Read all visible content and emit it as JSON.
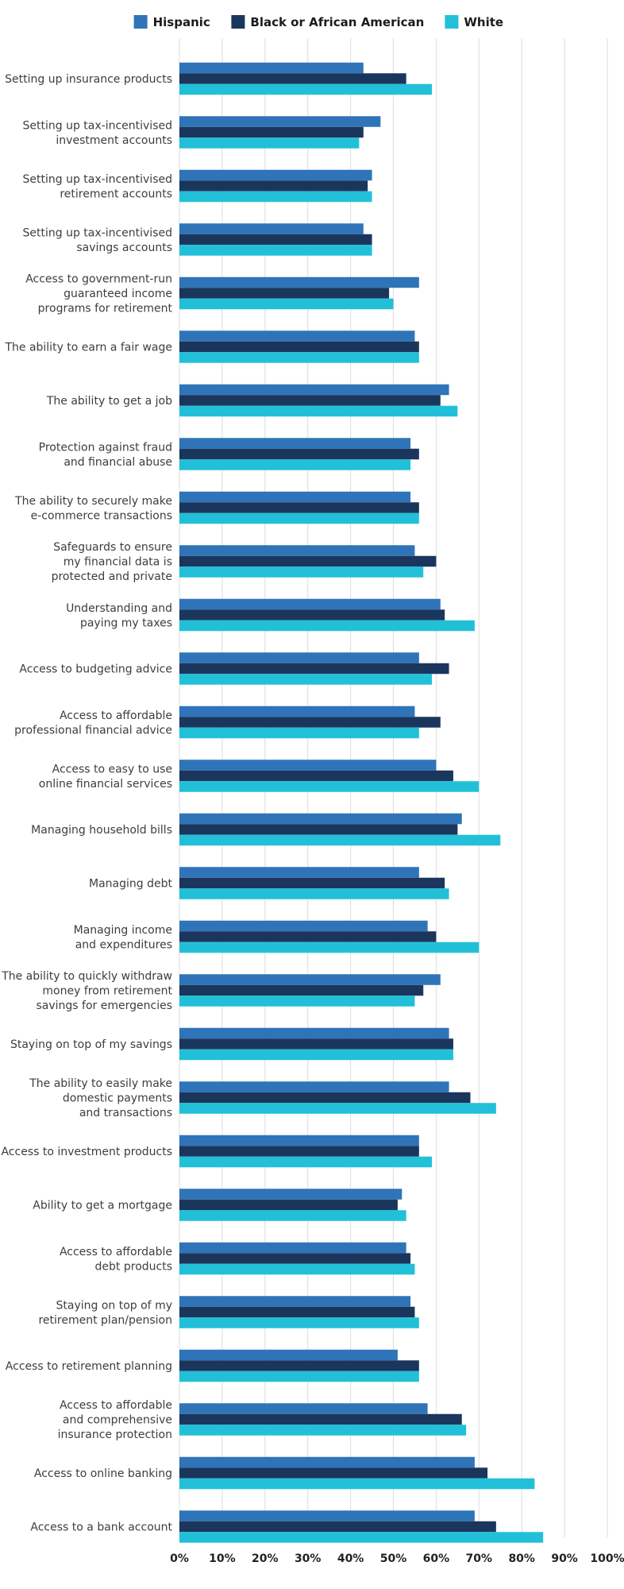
{
  "chart_data": {
    "type": "bar",
    "orientation": "horizontal",
    "grid": true,
    "legend_position": "top",
    "xlim": [
      0,
      100
    ],
    "x_ticks": [
      "0%",
      "10%",
      "20%",
      "30%",
      "40%",
      "50%",
      "60%",
      "70%",
      "80%",
      "90%",
      "100%"
    ],
    "categories": [
      [
        "Setting up insurance products"
      ],
      [
        "Setting up tax-incentivised",
        "investment accounts"
      ],
      [
        "Setting up tax-incentivised",
        "retirement accounts"
      ],
      [
        "Setting up tax-incentivised",
        "savings accounts"
      ],
      [
        "Access to government-run",
        "guaranteed income",
        "programs for retirement"
      ],
      [
        "The ability to earn a fair wage"
      ],
      [
        "The ability to get a job"
      ],
      [
        "Protection against fraud",
        "and financial abuse"
      ],
      [
        "The ability to securely make",
        "e-commerce transactions"
      ],
      [
        "Safeguards to ensure",
        "my financial data is",
        "protected and private"
      ],
      [
        "Understanding and",
        "paying my taxes"
      ],
      [
        "Access to budgeting advice"
      ],
      [
        "Access to affordable",
        "professional financial advice"
      ],
      [
        "Access to easy to use",
        "online financial services"
      ],
      [
        "Managing household bills"
      ],
      [
        "Managing debt"
      ],
      [
        "Managing income",
        "and expenditures"
      ],
      [
        "The ability to quickly withdraw",
        "money from retirement",
        "savings for emergencies"
      ],
      [
        "Staying on top of my savings"
      ],
      [
        "The ability to easily make",
        "domestic payments",
        "and transactions"
      ],
      [
        "Access to investment products"
      ],
      [
        "Ability to get a mortgage"
      ],
      [
        "Access to affordable",
        "debt products"
      ],
      [
        "Staying on top of my",
        "retirement plan/pension"
      ],
      [
        "Access to retirement planning"
      ],
      [
        "Access to affordable",
        "and comprehensive",
        "insurance protection"
      ],
      [
        "Access to online banking"
      ],
      [
        "Access to a bank account"
      ]
    ],
    "series": [
      {
        "name": "Hispanic",
        "color": "#2f74b8",
        "values": [
          43,
          47,
          45,
          43,
          56,
          55,
          63,
          54,
          54,
          55,
          61,
          56,
          55,
          60,
          66,
          56,
          58,
          61,
          63,
          63,
          56,
          52,
          53,
          54,
          51,
          58,
          69,
          69
        ]
      },
      {
        "name": "Black or African American",
        "color": "#1b365d",
        "values": [
          53,
          43,
          44,
          45,
          49,
          56,
          61,
          56,
          56,
          60,
          62,
          63,
          61,
          64,
          65,
          62,
          60,
          57,
          64,
          68,
          56,
          51,
          54,
          55,
          56,
          66,
          72,
          74
        ]
      },
      {
        "name": "White",
        "color": "#22c0d8",
        "values": [
          59,
          42,
          45,
          45,
          50,
          56,
          65,
          54,
          56,
          57,
          69,
          59,
          56,
          70,
          75,
          63,
          70,
          55,
          64,
          74,
          59,
          53,
          55,
          56,
          56,
          67,
          83,
          85
        ]
      }
    ]
  }
}
